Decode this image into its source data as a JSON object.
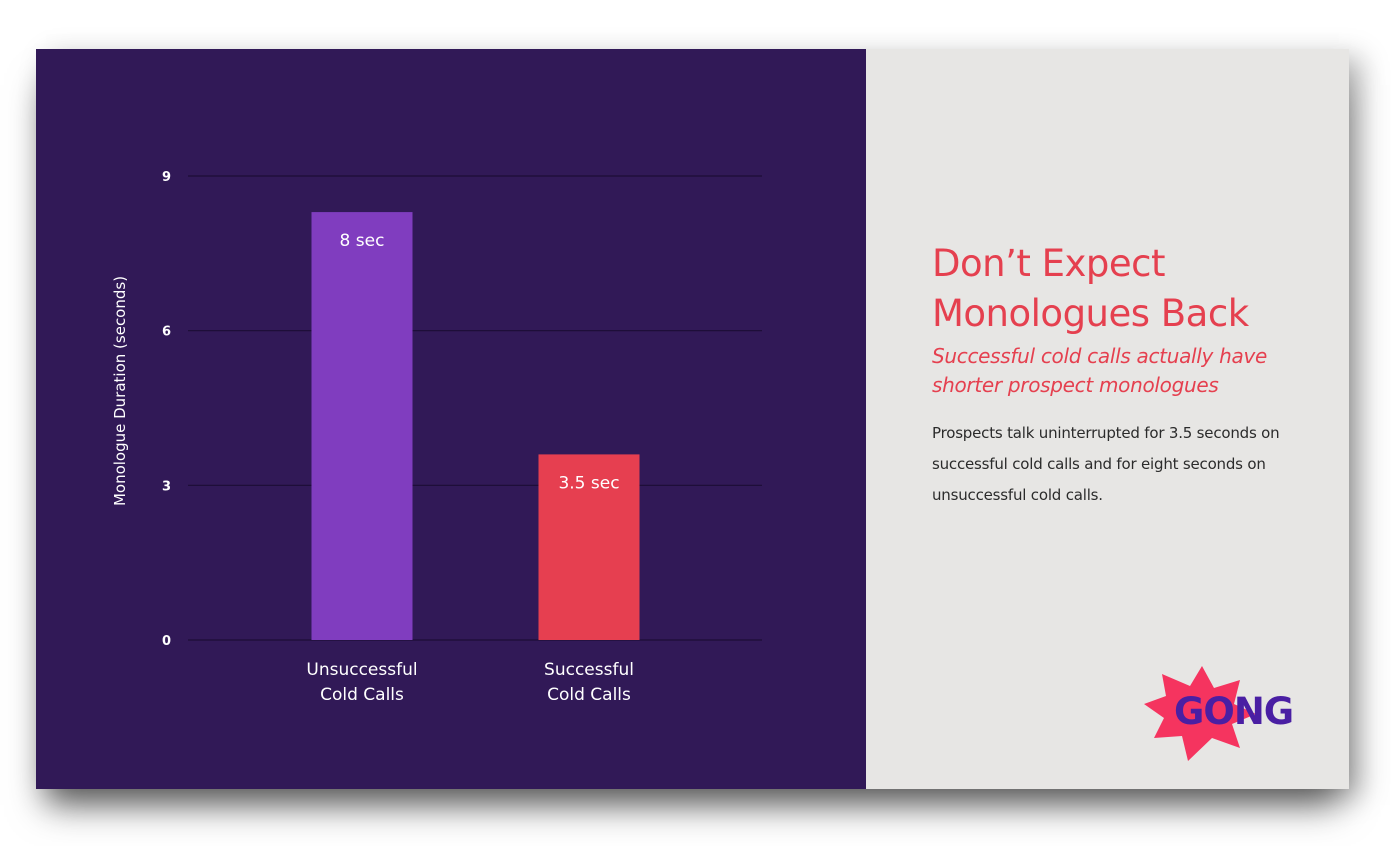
{
  "chart_data": {
    "type": "bar",
    "categories": [
      "Unsuccessful Cold Calls",
      "Successful Cold Calls"
    ],
    "category_lines": [
      [
        "Unsuccessful",
        "Cold Calls"
      ],
      [
        "Successful",
        "Cold Calls"
      ]
    ],
    "values": [
      8.3,
      3.6
    ],
    "data_labels": [
      "8 sec",
      "3.5 sec"
    ],
    "bar_colors": [
      "#803dbf",
      "#e63f50"
    ],
    "title": "",
    "xlabel": "",
    "ylabel": "Monologue Duration (seconds)",
    "ylim": [
      0,
      9
    ],
    "yticks": [
      0,
      3,
      6,
      9
    ],
    "grid": true,
    "background": "#311957",
    "gridline_color": "#1c0d35",
    "text_color": "#ffffff"
  },
  "panel": {
    "headline": "Don’t Expect Monologues Back",
    "subheadline": "Successful cold calls actually have shorter prospect monologues",
    "body": "Prospects talk uninterrupted for 3.5 seconds on successful cold calls and for eight seconds on unsuccessful cold calls.",
    "background": "#e7e6e4",
    "accent_color": "#e5404f"
  },
  "logo": {
    "text": "GONG",
    "burst_color": "#f5345f",
    "text_color": "#4a1fa3"
  }
}
